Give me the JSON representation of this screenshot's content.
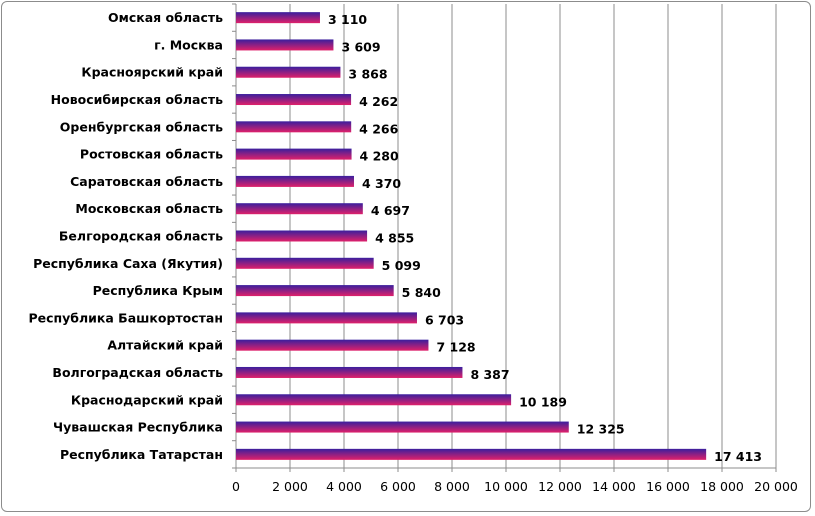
{
  "chart_data": {
    "type": "bar",
    "orientation": "horizontal",
    "title": "",
    "xlabel": "",
    "ylabel": "",
    "categories": [
      "Омская область",
      "г. Москва",
      "Красноярский край",
      "Новосибирская область",
      "Оренбургская область",
      "Ростовская область",
      "Саратовская область",
      "Московская область",
      "Белгородская область",
      "Республика Саха (Якутия)",
      "Республика Крым",
      "Республика Башкортостан",
      "Алтайский край",
      "Волгоградская область",
      "Краснодарский край",
      "Чувашская Республика",
      "Республика Татарстан"
    ],
    "values": [
      3110,
      3609,
      3868,
      4262,
      4266,
      4280,
      4370,
      4697,
      4855,
      5099,
      5840,
      6703,
      7128,
      8387,
      10189,
      12325,
      17413
    ],
    "value_labels": [
      "3 110",
      "3 609",
      "3 868",
      "4 262",
      "4 266",
      "4 280",
      "4 370",
      "4 697",
      "4 855",
      "5 099",
      "5 840",
      "6 703",
      "7 128",
      "8 387",
      "10 189",
      "12 325",
      "17 413"
    ],
    "xlim": [
      0,
      20000
    ],
    "x_ticks": [
      0,
      2000,
      4000,
      6000,
      8000,
      10000,
      12000,
      14000,
      16000,
      18000,
      20000
    ],
    "x_tick_labels": [
      "0",
      "2 000",
      "4 000",
      "6 000",
      "8 000",
      "10 000",
      "12 000",
      "14 000",
      "16 000",
      "18 000",
      "20 000"
    ],
    "grid": true,
    "legend": "none",
    "colors": {
      "bar_top": "#3a1f9e",
      "bar_bottom": "#e0206a",
      "grid": "#8c8c8c",
      "axis": "#8c8c8c",
      "frame": "#8c8c8c"
    }
  }
}
